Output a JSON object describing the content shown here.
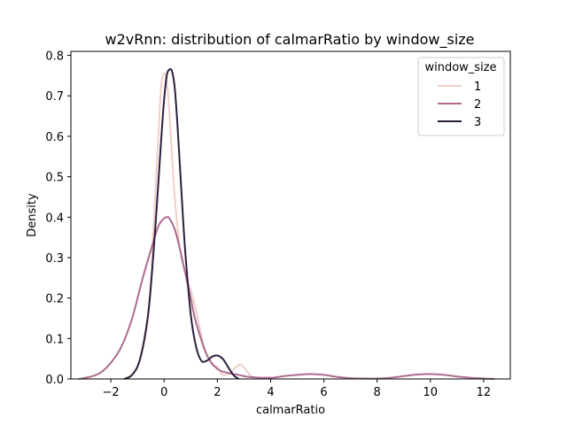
{
  "chart_data": {
    "type": "line",
    "title": "w2vRnn: distribution of calmarRatio by window_size",
    "xlabel": "calmarRatio",
    "ylabel": "Density",
    "xlim": [
      -3.5,
      13
    ],
    "ylim": [
      0,
      0.81
    ],
    "xticks": [
      -2,
      0,
      2,
      4,
      6,
      8,
      10,
      12
    ],
    "xtick_labels": [
      "−2",
      "0",
      "2",
      "4",
      "6",
      "8",
      "10",
      "12"
    ],
    "yticks": [
      0.0,
      0.1,
      0.2,
      0.3,
      0.4,
      0.5,
      0.6,
      0.7,
      0.8
    ],
    "ytick_labels": [
      "0.0",
      "0.1",
      "0.2",
      "0.3",
      "0.4",
      "0.5",
      "0.6",
      "0.7",
      "0.8"
    ],
    "grid": false,
    "legend": {
      "title": "window_size",
      "placement": "top-right"
    },
    "series": [
      {
        "name": "1",
        "color": "#efcfca",
        "x": [
          -1.5,
          -1.0,
          -0.6,
          -0.4,
          -0.2,
          -0.1,
          0.0,
          0.1,
          0.2,
          0.3,
          0.4,
          0.6,
          0.8,
          1.0,
          1.2,
          1.5,
          1.8,
          2.0,
          2.2,
          2.5,
          2.7,
          2.9,
          3.1,
          3.3,
          3.6
        ],
        "y": [
          0.0,
          0.03,
          0.15,
          0.37,
          0.62,
          0.73,
          0.755,
          0.74,
          0.66,
          0.55,
          0.45,
          0.32,
          0.26,
          0.22,
          0.17,
          0.08,
          0.035,
          0.03,
          0.01,
          0.015,
          0.03,
          0.035,
          0.02,
          0.005,
          0.0
        ]
      },
      {
        "name": "2",
        "color": "#ad6b8f",
        "x": [
          -3.2,
          -2.8,
          -2.4,
          -2.0,
          -1.6,
          -1.2,
          -0.8,
          -0.4,
          -0.2,
          0.0,
          0.1,
          0.2,
          0.4,
          0.6,
          0.8,
          1.0,
          1.2,
          1.6,
          2.0,
          2.4,
          2.8,
          3.2,
          4.0,
          4.5,
          5.0,
          5.5,
          6.0,
          6.5,
          7.0,
          7.5,
          8.0,
          8.5,
          9.0,
          9.5,
          10.0,
          10.5,
          11.0,
          11.5,
          12.0,
          12.4
        ],
        "y": [
          0.0,
          0.005,
          0.015,
          0.04,
          0.08,
          0.15,
          0.25,
          0.34,
          0.38,
          0.397,
          0.4,
          0.397,
          0.37,
          0.32,
          0.26,
          0.2,
          0.14,
          0.06,
          0.025,
          0.015,
          0.01,
          0.005,
          0.003,
          0.007,
          0.01,
          0.012,
          0.01,
          0.005,
          0.002,
          0.001,
          0.001,
          0.003,
          0.007,
          0.011,
          0.012,
          0.01,
          0.006,
          0.003,
          0.001,
          0.0
        ]
      },
      {
        "name": "3",
        "color": "#2d1e3e",
        "x": [
          -1.5,
          -1.2,
          -0.9,
          -0.6,
          -0.4,
          -0.2,
          -0.1,
          0.0,
          0.1,
          0.2,
          0.3,
          0.4,
          0.5,
          0.6,
          0.7,
          0.8,
          1.0,
          1.2,
          1.4,
          1.6,
          1.8,
          2.0,
          2.2,
          2.4,
          2.6,
          2.8
        ],
        "y": [
          0.0,
          0.01,
          0.05,
          0.16,
          0.31,
          0.5,
          0.6,
          0.69,
          0.75,
          0.765,
          0.76,
          0.72,
          0.63,
          0.52,
          0.41,
          0.31,
          0.16,
          0.08,
          0.045,
          0.045,
          0.055,
          0.058,
          0.05,
          0.03,
          0.01,
          0.0
        ]
      }
    ]
  }
}
